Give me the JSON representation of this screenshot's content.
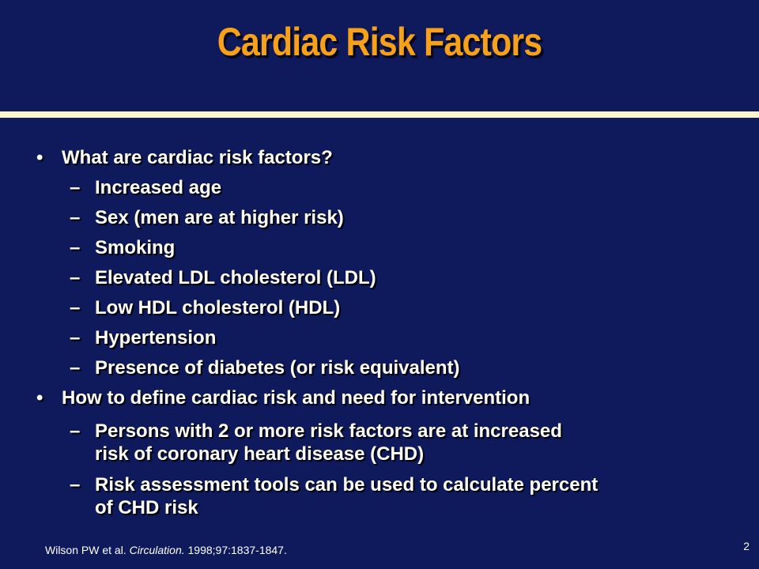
{
  "slide": {
    "title": "Cardiac Risk Factors",
    "bullet_mark": "•",
    "dash_mark": "–",
    "items": [
      {
        "text": "What are cardiac risk factors?",
        "subitems": [
          "Increased age",
          "Sex (men are at higher risk)",
          "Smoking",
          "Elevated LDL cholesterol (LDL)",
          "Low HDL cholesterol (HDL)",
          "Hypertension",
          "Presence of diabetes (or risk equivalent)"
        ]
      },
      {
        "text": "How to define cardiac risk and need for intervention",
        "subitems": [
          [
            "Persons with 2 or more risk factors are at increased",
            "risk of coronary heart disease (CHD)"
          ],
          [
            "Risk assessment tools can be used to calculate percent",
            "of CHD risk"
          ]
        ]
      }
    ],
    "citation": {
      "authors": "Wilson PW et al.",
      "journal": "Circulation.",
      "details": "1998;97:1837-1847."
    },
    "page_number": "2"
  },
  "colors": {
    "background": "#0f1a5c",
    "title": "#f7a11a",
    "rule": "#fbf6cc",
    "text": "#ffffff"
  }
}
